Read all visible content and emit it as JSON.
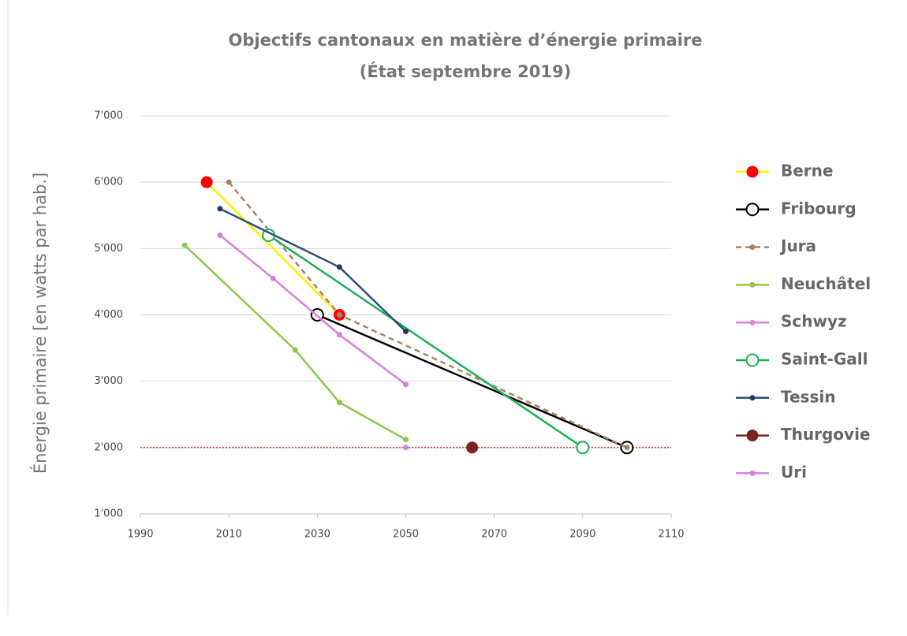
{
  "chart_data": {
    "type": "line",
    "title": "Objectifs cantonaux en matière d’énergie primaire",
    "subtitle": "(État septembre 2019)",
    "y_label": "Énergie primaire [en watts par hab.]",
    "xlim": [
      1990,
      2110
    ],
    "xticks": [
      1990,
      2010,
      2030,
      2050,
      2070,
      2090,
      2110
    ],
    "ylim": [
      1000,
      7000
    ],
    "yticks": [
      {
        "value": 1000,
        "label": "1'000"
      },
      {
        "value": 2000,
        "label": "2'000"
      },
      {
        "value": 3000,
        "label": "3'000"
      },
      {
        "value": 4000,
        "label": "4'000"
      },
      {
        "value": 5000,
        "label": "5'000"
      },
      {
        "value": 6000,
        "label": "6'000"
      },
      {
        "value": 7000,
        "label": "7'000"
      }
    ],
    "grid": true,
    "legend": "right",
    "reference_line": {
      "value": 2000,
      "color": "#e02020"
    },
    "series": [
      {
        "name": "Berne",
        "color": "#ffee00",
        "marker_color": "#ff0000",
        "marker": "filled",
        "x": [
          2005,
          2035
        ],
        "values": [
          6000,
          4000
        ]
      },
      {
        "name": "Fribourg",
        "color": "#000000",
        "marker_color": "#000000",
        "marker": "hollow",
        "x": [
          2030,
          2100
        ],
        "values": [
          4000,
          2000
        ]
      },
      {
        "name": "Jura",
        "color": "#a68462",
        "marker_color": "#a68462",
        "marker": "small",
        "dash": true,
        "x": [
          2010,
          2035,
          2100
        ],
        "values": [
          6000,
          4000,
          2000
        ]
      },
      {
        "name": "Neuchâtel",
        "color": "#8cc84b",
        "marker_color": "#8cc84b",
        "marker": "small",
        "x": [
          2000,
          2025,
          2035,
          2050
        ],
        "values": [
          5050,
          3470,
          2680,
          2120
        ]
      },
      {
        "name": "Schwyz",
        "color": "#d87fdc",
        "marker_color": "#d87fdc",
        "marker": "small",
        "x": [
          2008,
          2020,
          2035,
          2050
        ],
        "values": [
          5200,
          4550,
          3700,
          2950
        ]
      },
      {
        "name": "Saint-Gall",
        "color": "#1fae55",
        "marker_color": "#1fae55",
        "marker": "hollow",
        "x": [
          2019,
          2090
        ],
        "values": [
          5200,
          2000
        ]
      },
      {
        "name": "Tessin",
        "color": "#2f4d7a",
        "marker_color": "#1f3a66",
        "marker": "small",
        "x": [
          2008,
          2035,
          2050
        ],
        "values": [
          5600,
          4720,
          3750
        ]
      },
      {
        "name": "Thurgovie",
        "color": "#7a2222",
        "marker_color": "#7a2222",
        "marker": "filled",
        "x": [
          2065
        ],
        "values": [
          2000
        ]
      },
      {
        "name": "Uri",
        "color": "#d87fdc",
        "marker_color": "#d87fdc",
        "marker": "small",
        "x": [
          2050
        ],
        "values": [
          2000
        ]
      }
    ]
  }
}
